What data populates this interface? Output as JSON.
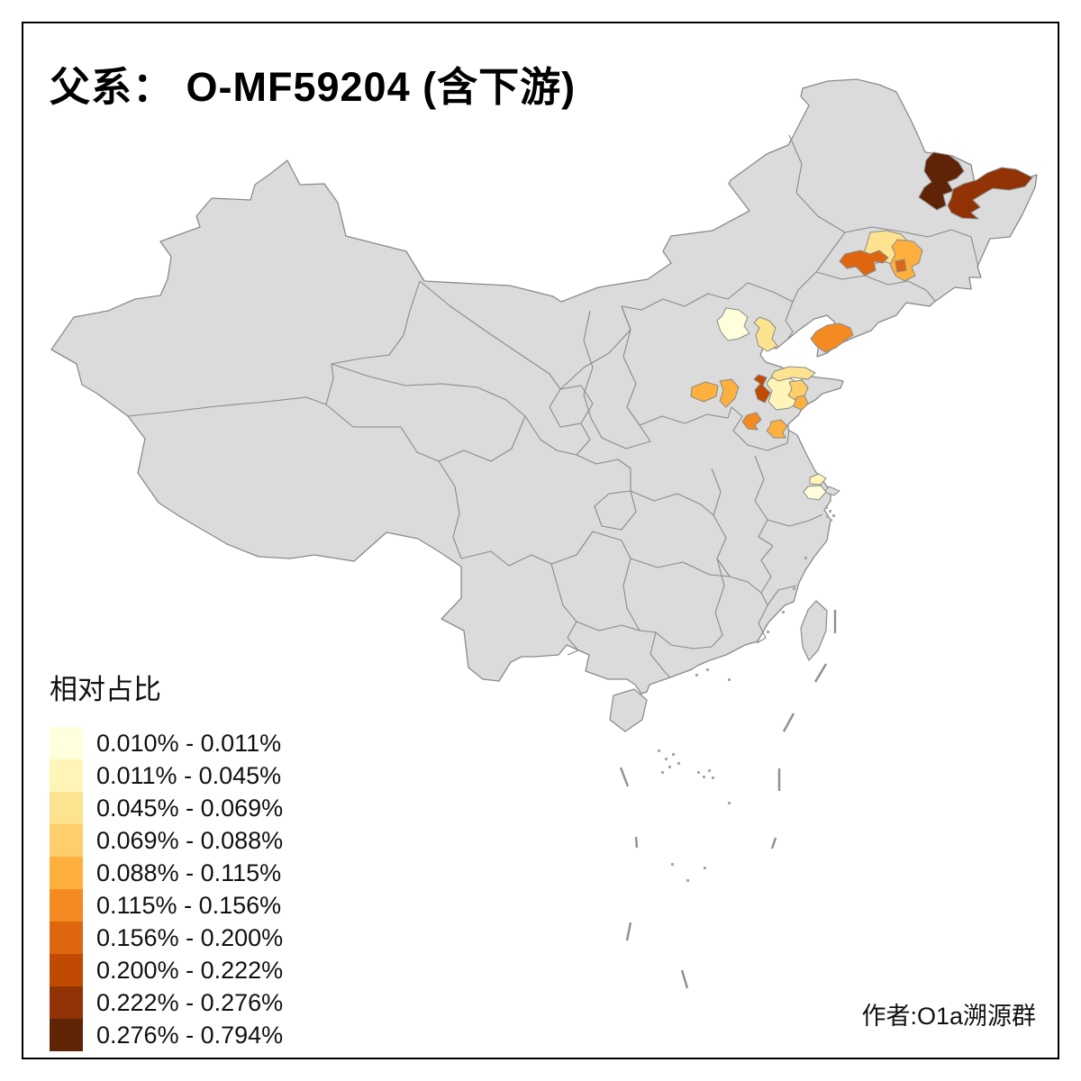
{
  "title": "父系： O-MF59204 (含下游)",
  "attribution": "作者:O1a溯源群",
  "legend": {
    "title": "相对占比",
    "items": [
      {
        "label": "0.010% - 0.011%",
        "color": "#FFFFDB"
      },
      {
        "label": "0.011% - 0.045%",
        "color": "#FFF5B9"
      },
      {
        "label": "0.045% - 0.069%",
        "color": "#FDE38F"
      },
      {
        "label": "0.069% - 0.088%",
        "color": "#FDCE6A"
      },
      {
        "label": "0.088% - 0.115%",
        "color": "#FDB03E"
      },
      {
        "label": "0.115% - 0.156%",
        "color": "#F38B22"
      },
      {
        "label": "0.156% - 0.200%",
        "color": "#DD660F"
      },
      {
        "label": "0.200% - 0.222%",
        "color": "#C14A02"
      },
      {
        "label": "0.222% - 0.276%",
        "color": "#913305"
      },
      {
        "label": "0.276% - 0.794%",
        "color": "#5F2406"
      }
    ]
  },
  "map": {
    "land_color": "#DBDBDB",
    "boundary_color": "#8A8A8A",
    "sea_color": "#FFFFFF",
    "frame_color": "#000000"
  },
  "chart_data": {
    "type": "choropleth_map",
    "title": "父系： O-MF59204 (含下游)",
    "legend_title": "相对占比",
    "value_unit": "relative percentage share",
    "bins": [
      "0.010% - 0.011%",
      "0.011% - 0.045%",
      "0.045% - 0.069%",
      "0.069% - 0.088%",
      "0.088% - 0.115%",
      "0.115% - 0.156%",
      "0.156% - 0.200%",
      "0.200% - 0.222%",
      "0.222% - 0.276%",
      "0.276% - 0.794%"
    ],
    "bin_colors": [
      "#FFFFDB",
      "#FFF5B9",
      "#FDE38F",
      "#FDCE6A",
      "#FDB03E",
      "#F38B22",
      "#DD660F",
      "#C14A02",
      "#913305",
      "#5F2406"
    ],
    "regions": [
      {
        "id": "heilongjiang-nw",
        "area": "Heilongjiang northwest",
        "bin": 10,
        "range": "0.276% - 0.794%"
      },
      {
        "id": "heilongjiang-e",
        "area": "Heilongjiang east",
        "bin": 9,
        "range": "0.222% - 0.276%"
      },
      {
        "id": "jilin-north",
        "area": "Jilin north",
        "bin": 3,
        "range": "0.045% - 0.069%"
      },
      {
        "id": "jilin-east",
        "area": "Jilin east",
        "bin": 5,
        "range": "0.088% - 0.115%"
      },
      {
        "id": "jilin-west",
        "area": "Jilin west",
        "bin": 7,
        "range": "0.156% - 0.200%"
      },
      {
        "id": "beijing",
        "area": "Beijing",
        "bin": 1,
        "range": "0.010% - 0.011%"
      },
      {
        "id": "tianjin",
        "area": "Tianjin",
        "bin": 3,
        "range": "0.045% - 0.069%"
      },
      {
        "id": "shandong-coast",
        "area": "Shandong peninsula north coast",
        "bin": 6,
        "range": "0.115% - 0.156%"
      },
      {
        "id": "jinan",
        "area": "Shandong central-west",
        "bin": 8,
        "range": "0.200% - 0.222%"
      },
      {
        "id": "shandong-central",
        "area": "Shandong central",
        "bin": 2,
        "range": "0.011% - 0.045%"
      },
      {
        "id": "shandong-north",
        "area": "Shandong north strip",
        "bin": 3,
        "range": "0.045% - 0.069%"
      },
      {
        "id": "shandong-yellow",
        "area": "Shandong east-central",
        "bin": 4,
        "range": "0.069% - 0.088%"
      },
      {
        "id": "shandong-orange-s",
        "area": "Shandong southeast small",
        "bin": 5,
        "range": "0.088% - 0.115%"
      },
      {
        "id": "hebei-s-1",
        "area": "Hebei south west",
        "bin": 5,
        "range": "0.088% - 0.115%"
      },
      {
        "id": "hebei-s-2",
        "area": "Hebei south east",
        "bin": 5,
        "range": "0.088% - 0.115%"
      },
      {
        "id": "jining",
        "area": "Shandong southwest",
        "bin": 6,
        "range": "0.115% - 0.156%"
      },
      {
        "id": "linyi",
        "area": "Shandong south",
        "bin": 5,
        "range": "0.088% - 0.115%"
      },
      {
        "id": "nantong",
        "area": "Jiangsu Nantong",
        "bin": 2,
        "range": "0.011% - 0.045%"
      },
      {
        "id": "suzhou",
        "area": "Jiangsu south near Shanghai",
        "bin": 1,
        "range": "0.010% - 0.011%"
      }
    ]
  }
}
